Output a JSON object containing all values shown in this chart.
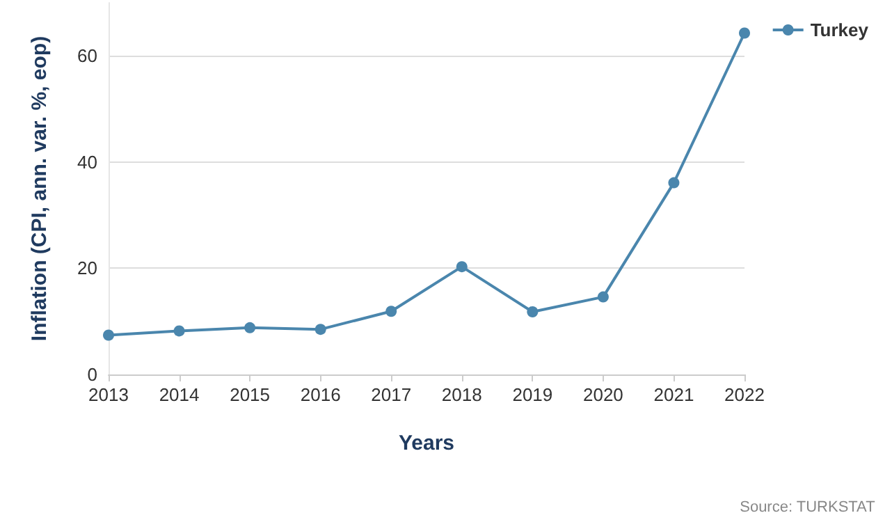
{
  "chart_data": {
    "type": "line",
    "xlabel": "Years",
    "ylabel": "Inflation (CPI, ann. var. %, eop)",
    "categories": [
      "2013",
      "2014",
      "2015",
      "2016",
      "2017",
      "2018",
      "2019",
      "2020",
      "2021",
      "2022"
    ],
    "series": [
      {
        "name": "Turkey",
        "color": "#4a86ad",
        "values": [
          7.4,
          8.2,
          8.8,
          8.5,
          11.9,
          20.3,
          11.8,
          14.6,
          36.1,
          64.3
        ]
      }
    ],
    "ylim": [
      0,
      70
    ],
    "yticks": [
      0,
      20,
      40,
      60
    ],
    "grid": "y",
    "legend": "top right",
    "marker": "circle",
    "line_style": "solid",
    "annotations": [
      "Source: TURKSTAT"
    ]
  }
}
